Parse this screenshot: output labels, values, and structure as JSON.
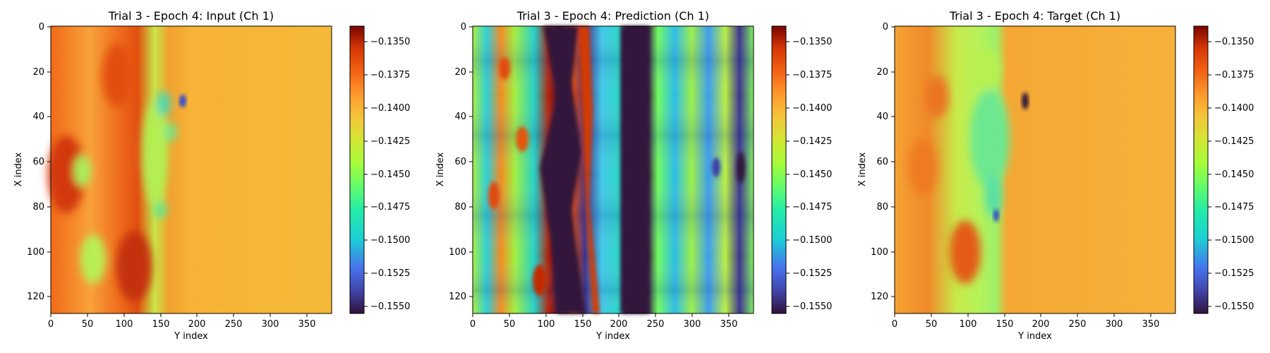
{
  "chart_data": [
    {
      "type": "heatmap",
      "title": "Trial 3 - Epoch 4: Input (Ch 1)",
      "xlabel": "Y index",
      "ylabel": "X index",
      "xlim": [
        0,
        383
      ],
      "ylim": [
        127,
        0
      ],
      "x_ticks": [
        "0",
        "50",
        "100",
        "150",
        "200",
        "250",
        "300",
        "350"
      ],
      "y_ticks": [
        "0",
        "20",
        "40",
        "60",
        "80",
        "100",
        "120"
      ],
      "colormap": "turbo",
      "colorbar": {
        "range": [
          -0.1556,
          -0.1338
        ],
        "ticks": [
          "−0.1350",
          "−0.1375",
          "−0.1400",
          "−0.1425",
          "−0.1450",
          "−0.1475",
          "−0.1500",
          "−0.1525",
          "−0.1550"
        ]
      }
    },
    {
      "type": "heatmap",
      "title": "Trial 3 - Epoch 4: Prediction (Ch 1)",
      "xlabel": "Y index",
      "ylabel": "X index",
      "xlim": [
        0,
        383
      ],
      "ylim": [
        127,
        0
      ],
      "x_ticks": [
        "0",
        "50",
        "100",
        "150",
        "200",
        "250",
        "300",
        "350"
      ],
      "y_ticks": [
        "0",
        "20",
        "40",
        "60",
        "80",
        "100",
        "120"
      ],
      "colormap": "turbo",
      "colorbar": {
        "range": [
          -0.1556,
          -0.1338
        ],
        "ticks": [
          "−0.1350",
          "−0.1375",
          "−0.1400",
          "−0.1425",
          "−0.1450",
          "−0.1475",
          "−0.1500",
          "−0.1525",
          "−0.1550"
        ]
      }
    },
    {
      "type": "heatmap",
      "title": "Trial 3 - Epoch 4: Target (Ch 1)",
      "xlabel": "Y index",
      "ylabel": "X index",
      "xlim": [
        0,
        383
      ],
      "ylim": [
        127,
        0
      ],
      "x_ticks": [
        "0",
        "50",
        "100",
        "150",
        "200",
        "250",
        "300",
        "350"
      ],
      "y_ticks": [
        "0",
        "20",
        "40",
        "60",
        "80",
        "100",
        "120"
      ],
      "colormap": "turbo",
      "colorbar": {
        "range": [
          -0.1556,
          -0.1338
        ],
        "ticks": [
          "−0.1350",
          "−0.1375",
          "−0.1400",
          "−0.1425",
          "−0.1450",
          "−0.1475",
          "−0.1500",
          "−0.1525",
          "−0.1550"
        ]
      }
    }
  ]
}
